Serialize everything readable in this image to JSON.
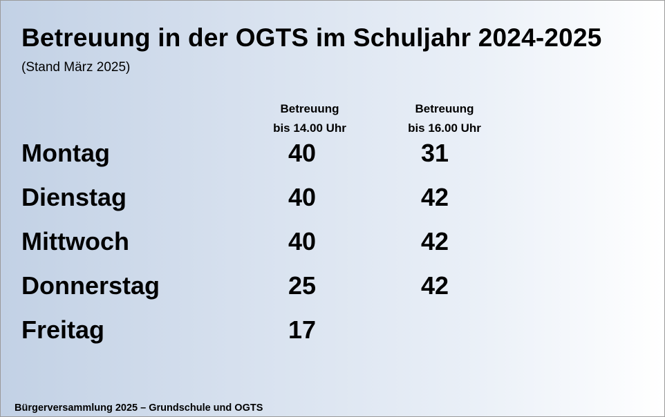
{
  "slide": {
    "title": "Betreuung in der OGTS im Schuljahr 2024-2025",
    "subtitle": "(Stand März 2025)",
    "columns": [
      {
        "line1": "Betreuung",
        "line2": "bis 14.00 Uhr"
      },
      {
        "line1": "Betreuung",
        "line2": "bis 16.00 Uhr"
      }
    ],
    "rows": [
      {
        "day": "Montag",
        "until_14": "40",
        "until_16": "31"
      },
      {
        "day": "Dienstag",
        "until_14": "40",
        "until_16": "42"
      },
      {
        "day": "Mittwoch",
        "until_14": "40",
        "until_16": "42"
      },
      {
        "day": "Donnerstag",
        "until_14": "25",
        "until_16": "42"
      },
      {
        "day": "Freitag",
        "until_14": "17",
        "until_16": ""
      }
    ],
    "footer": "Bürgerversammlung 2025 – Grundschule und OGTS",
    "colors": {
      "background_left": "#c2d1e5",
      "background_right": "#ffffff",
      "text": "#000000"
    }
  }
}
